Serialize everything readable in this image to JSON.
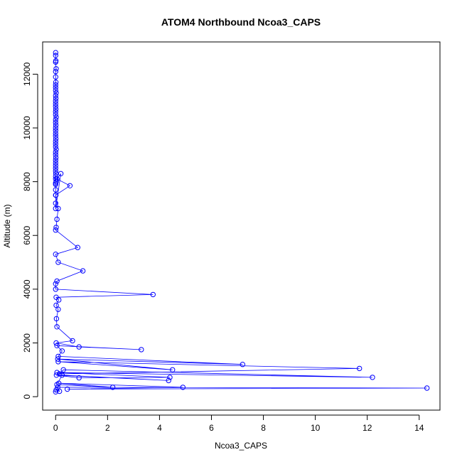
{
  "chart_data": {
    "type": "line",
    "title": "ATOM4 Northbound Ncoa3_CAPS",
    "xlabel": "Ncoa3_CAPS",
    "ylabel": "Altitude (m)",
    "xlim": [
      -0.5,
      14.8
    ],
    "ylim": [
      -500,
      13200
    ],
    "x_ticks": [
      0,
      2,
      4,
      6,
      8,
      10,
      12,
      14
    ],
    "x_tick_labels": [
      "0",
      "2",
      "4",
      "6",
      "8",
      "10",
      "12",
      "14"
    ],
    "y_ticks": [
      0,
      2000,
      4000,
      6000,
      8000,
      10000,
      12000
    ],
    "y_tick_labels": [
      "0",
      "2000",
      "4000",
      "6000",
      "8000",
      "10000",
      "12000"
    ],
    "grid": false,
    "series_color": "#0000ff",
    "marker": "open-circle",
    "series": [
      {
        "name": "",
        "x": [
          0.0,
          0.0,
          0.01,
          0.0,
          0.02,
          0.0,
          0.0,
          0.01,
          0.0,
          0.0,
          0.0,
          0.02,
          0.0,
          0.01,
          0.0,
          0.0,
          0.0,
          0.01,
          0.0,
          0.0,
          0.02,
          0.0,
          0.0,
          0.01,
          0.0,
          0.0,
          0.0,
          0.0,
          0.01,
          0.0,
          0.0,
          0.0,
          0.02,
          0.0,
          0.0,
          0.01,
          0.0,
          0.0,
          0.0,
          0.0,
          0.0,
          0.01,
          0.0,
          0.0,
          0.02,
          0.0,
          0.0,
          0.0,
          0.01,
          0.0,
          0.0,
          0.2,
          0.05,
          0.55,
          0.0,
          0.1,
          0.05,
          0.02,
          0.0,
          0.85,
          0.0,
          0.1,
          1.05,
          0.05,
          0.0,
          0.0,
          3.75,
          0.02,
          0.12,
          0.02,
          0.1,
          0.03,
          0.05,
          0.65,
          0.02,
          0.9,
          3.3,
          0.05,
          0.25,
          0.1,
          7.2,
          0.08,
          4.5,
          0.1,
          11.7,
          0.15,
          0.3,
          12.2,
          0.05,
          4.4,
          0.9,
          0.03,
          4.35,
          0.25,
          0.05,
          2.2,
          0.12,
          4.9,
          0.45,
          14.3,
          0.08,
          0.15,
          0.02,
          0.0
        ],
        "y": [
          12800,
          12700,
          12500,
          12450,
          12200,
          12100,
          11900,
          11700,
          11600,
          11500,
          11400,
          11300,
          11200,
          11100,
          11000,
          10900,
          10800,
          10700,
          10600,
          10500,
          10400,
          10300,
          10200,
          10100,
          10000,
          9900,
          9800,
          9700,
          9600,
          9500,
          9400,
          9300,
          9200,
          9100,
          9000,
          8900,
          8800,
          8700,
          8600,
          8500,
          8400,
          8300,
          8200,
          8100,
          8000,
          7950,
          7900,
          7700,
          7500,
          7200,
          7000,
          8300,
          8100,
          7850,
          7500,
          7000,
          6600,
          6300,
          6200,
          5550,
          5300,
          5000,
          4680,
          4300,
          4200,
          4000,
          3800,
          3700,
          3600,
          3400,
          3250,
          2900,
          2600,
          2080,
          2000,
          1850,
          1750,
          1900,
          1700,
          1500,
          1200,
          1400,
          1000,
          1300,
          1050,
          850,
          1000,
          720,
          900,
          720,
          700,
          800,
          600,
          800,
          450,
          350,
          500,
          350,
          280,
          320,
          350,
          200,
          250,
          180
        ]
      }
    ]
  }
}
